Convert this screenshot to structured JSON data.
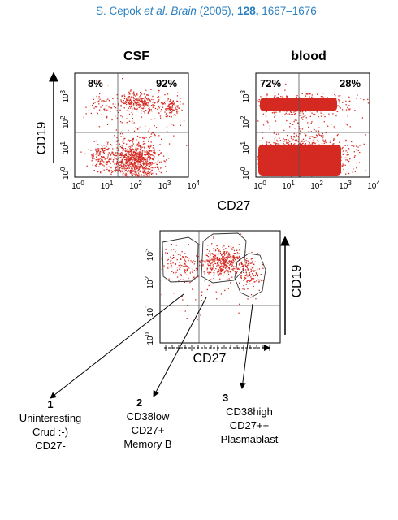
{
  "citation": {
    "author": "S. Cepok",
    "etal": "et al.",
    "journal": "Brain",
    "year": "(2005),",
    "volume": "128,",
    "pages": "1667–1676"
  },
  "plots": {
    "csf": {
      "title": "CSF",
      "q_left": "8%",
      "q_right": "92%"
    },
    "blood": {
      "title": "blood",
      "q_left": "72%",
      "q_right": "28%"
    }
  },
  "axes": {
    "y_label": "CD19",
    "x_label": "CD27",
    "ticks": [
      "10",
      "10",
      "10",
      "10",
      "10"
    ],
    "exponents": [
      "0",
      "1",
      "2",
      "3",
      "4"
    ]
  },
  "annotations": [
    {
      "num": "1",
      "lines": [
        "Uninteresting",
        "Crud :-)",
        "CD27-"
      ]
    },
    {
      "num": "2",
      "lines": [
        "CD38low",
        "CD27+",
        "Memory B"
      ]
    },
    {
      "num": "3",
      "lines": [
        "CD38high",
        "CD27++",
        "Plasmablast"
      ]
    }
  ],
  "colors": {
    "dots": "#d42a22",
    "citation": "#2a7fc0"
  }
}
